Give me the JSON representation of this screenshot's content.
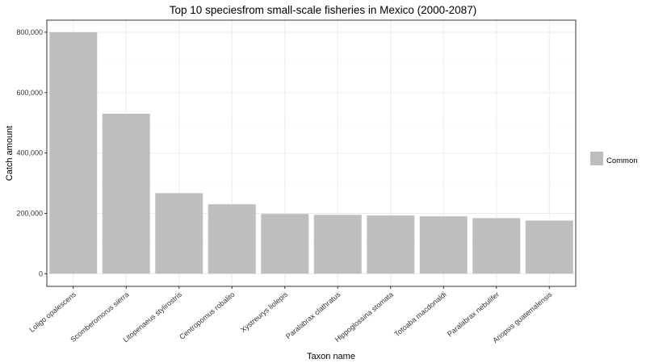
{
  "chart_data": {
    "type": "bar",
    "title": "Top 10 speciesfrom small-scale fisheries in Mexico (2000-2087)",
    "xlabel": "Taxon name",
    "ylabel": "Catch amount",
    "categories": [
      "Loligo opalescens",
      "Scomberomorus sierra",
      "Litopenaeus stylirostris",
      "Centropomus robalito",
      "Xystreurys liolepis",
      "Paralabrax clathratus",
      "Hippoglossina stomata",
      "Totoaba macdonaldi",
      "Paralabrax nebulifer",
      "Ariopsis guatemalensis"
    ],
    "series": [
      {
        "name": "Common",
        "values": [
          800000,
          530000,
          267000,
          230000,
          198000,
          195000,
          193000,
          190000,
          184000,
          176000
        ]
      }
    ],
    "ylim": [
      -42000,
      840000
    ],
    "yticks": [
      0,
      200000,
      400000,
      600000,
      800000
    ],
    "ytick_labels": [
      "0",
      "200,000",
      "400,000",
      "600,000",
      "800,000"
    ],
    "grid": true,
    "legend_position": "right",
    "colors": {
      "bar": "#bebebe",
      "panel_border": "#333333",
      "grid_major": "#ebebeb",
      "grid_minor": "#f5f5f5",
      "background": "#ffffff"
    }
  }
}
